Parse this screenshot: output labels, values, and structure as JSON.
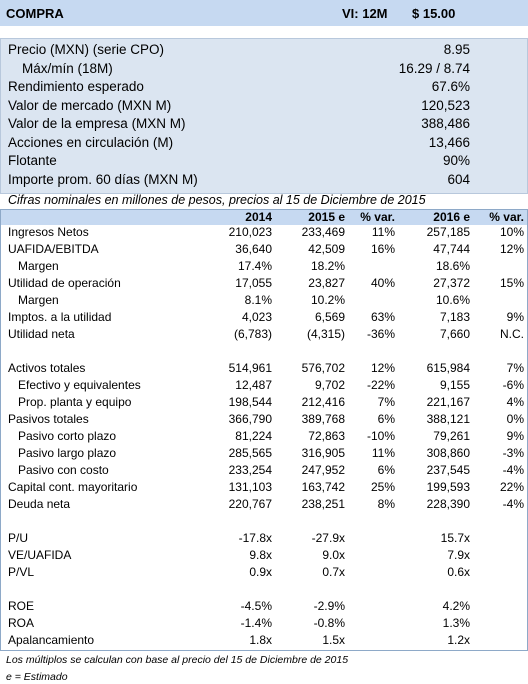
{
  "header": {
    "rating": "COMPRA",
    "target_label": "VI: 12M",
    "target_price": "$ 15.00"
  },
  "summary": [
    {
      "label": "Precio (MXN) (serie CPO)",
      "value": "8.95"
    },
    {
      "label": "Máx/mín (18M)",
      "value": "16.29 / 8.74",
      "indent": true
    },
    {
      "label": "Rendimiento esperado",
      "value": "67.6%"
    },
    {
      "label": "Valor de mercado (MXN M)",
      "value": "120,523"
    },
    {
      "label": "Valor de la empresa (MXN M)",
      "value": "388,486"
    },
    {
      "label": "Acciones en circulación (M)",
      "value": "13,466"
    },
    {
      "label": "Flotante",
      "value": "90%"
    },
    {
      "label": "Importe prom. 60 días (MXN M)",
      "value": "604"
    }
  ],
  "note": "Cifras nominales en millones de pesos, precios al 15 de Diciembre de 2015",
  "table": {
    "columns": [
      "2014",
      "2015 e",
      "% var.",
      "2016 e",
      "% var."
    ],
    "sections": [
      [
        {
          "label": "Ingresos Netos",
          "cells": [
            "210,023",
            "233,469",
            "11%",
            "257,185",
            "10%"
          ]
        },
        {
          "label": "UAFIDA/EBITDA",
          "cells": [
            "36,640",
            "42,509",
            "16%",
            "47,744",
            "12%"
          ]
        },
        {
          "label": "Margen",
          "indent": true,
          "cells": [
            "17.4%",
            "18.2%",
            null,
            "18.6%",
            null
          ]
        },
        {
          "label": "Utilidad de operación",
          "cells": [
            "17,055",
            "23,827",
            "40%",
            "27,372",
            "15%"
          ]
        },
        {
          "label": "Margen",
          "indent": true,
          "cells": [
            "8.1%",
            "10.2%",
            null,
            "10.6%",
            null
          ]
        },
        {
          "label": "Imptos. a la utilidad",
          "cells": [
            "4,023",
            "6,569",
            "63%",
            "7,183",
            "9%"
          ]
        },
        {
          "label": "Utilidad neta",
          "cells": [
            "(6,783)",
            "(4,315)",
            "-36%",
            "7,660",
            "N.C."
          ]
        }
      ],
      [
        {
          "label": "Activos totales",
          "cells": [
            "514,961",
            "576,702",
            "12%",
            "615,984",
            "7%"
          ]
        },
        {
          "label": "Efectivo y equivalentes",
          "indent": true,
          "cells": [
            "12,487",
            "9,702",
            "-22%",
            "9,155",
            "-6%"
          ]
        },
        {
          "label": "Prop. planta y equipo",
          "indent": true,
          "cells": [
            "198,544",
            "212,416",
            "7%",
            "221,167",
            "4%"
          ]
        },
        {
          "label": "Pasivos totales",
          "cells": [
            "366,790",
            "389,768",
            "6%",
            "388,121",
            "0%"
          ]
        },
        {
          "label": "Pasivo corto plazo",
          "indent": true,
          "cells": [
            "81,224",
            "72,863",
            "-10%",
            "79,261",
            "9%"
          ]
        },
        {
          "label": "Pasivo largo plazo",
          "indent": true,
          "cells": [
            "285,565",
            "316,905",
            "11%",
            "308,860",
            "-3%"
          ]
        },
        {
          "label": "Pasivo con costo",
          "indent": true,
          "cells": [
            "233,254",
            "247,952",
            "6%",
            "237,545",
            "-4%"
          ]
        },
        {
          "label": "Capital cont. mayoritario",
          "cells": [
            "131,103",
            "163,742",
            "25%",
            "199,593",
            "22%"
          ]
        },
        {
          "label": "Deuda neta",
          "cells": [
            "220,767",
            "238,251",
            "8%",
            "228,390",
            "-4%"
          ]
        }
      ],
      [
        {
          "label": "P/U",
          "cells": [
            "-17.8x",
            "-27.9x",
            null,
            "15.7x",
            null
          ]
        },
        {
          "label": "VE/UAFIDA",
          "cells": [
            "9.8x",
            "9.0x",
            null,
            "7.9x",
            null
          ]
        },
        {
          "label": "P/VL",
          "cells": [
            "0.9x",
            "0.7x",
            null,
            "0.6x",
            null
          ]
        }
      ],
      [
        {
          "label": "ROE",
          "cells": [
            "-4.5%",
            "-2.9%",
            null,
            "4.2%",
            null
          ]
        },
        {
          "label": "ROA",
          "cells": [
            "-1.4%",
            "-0.8%",
            null,
            "1.3%",
            null
          ]
        },
        {
          "label": "Apalancamiento",
          "cells": [
            "1.8x",
            "1.5x",
            null,
            "1.2x",
            null
          ]
        }
      ]
    ]
  },
  "footnotes": [
    "Los múltiplos se calculan con base al precio del 15 de Diciembre de 2015",
    "e = Estimado"
  ]
}
